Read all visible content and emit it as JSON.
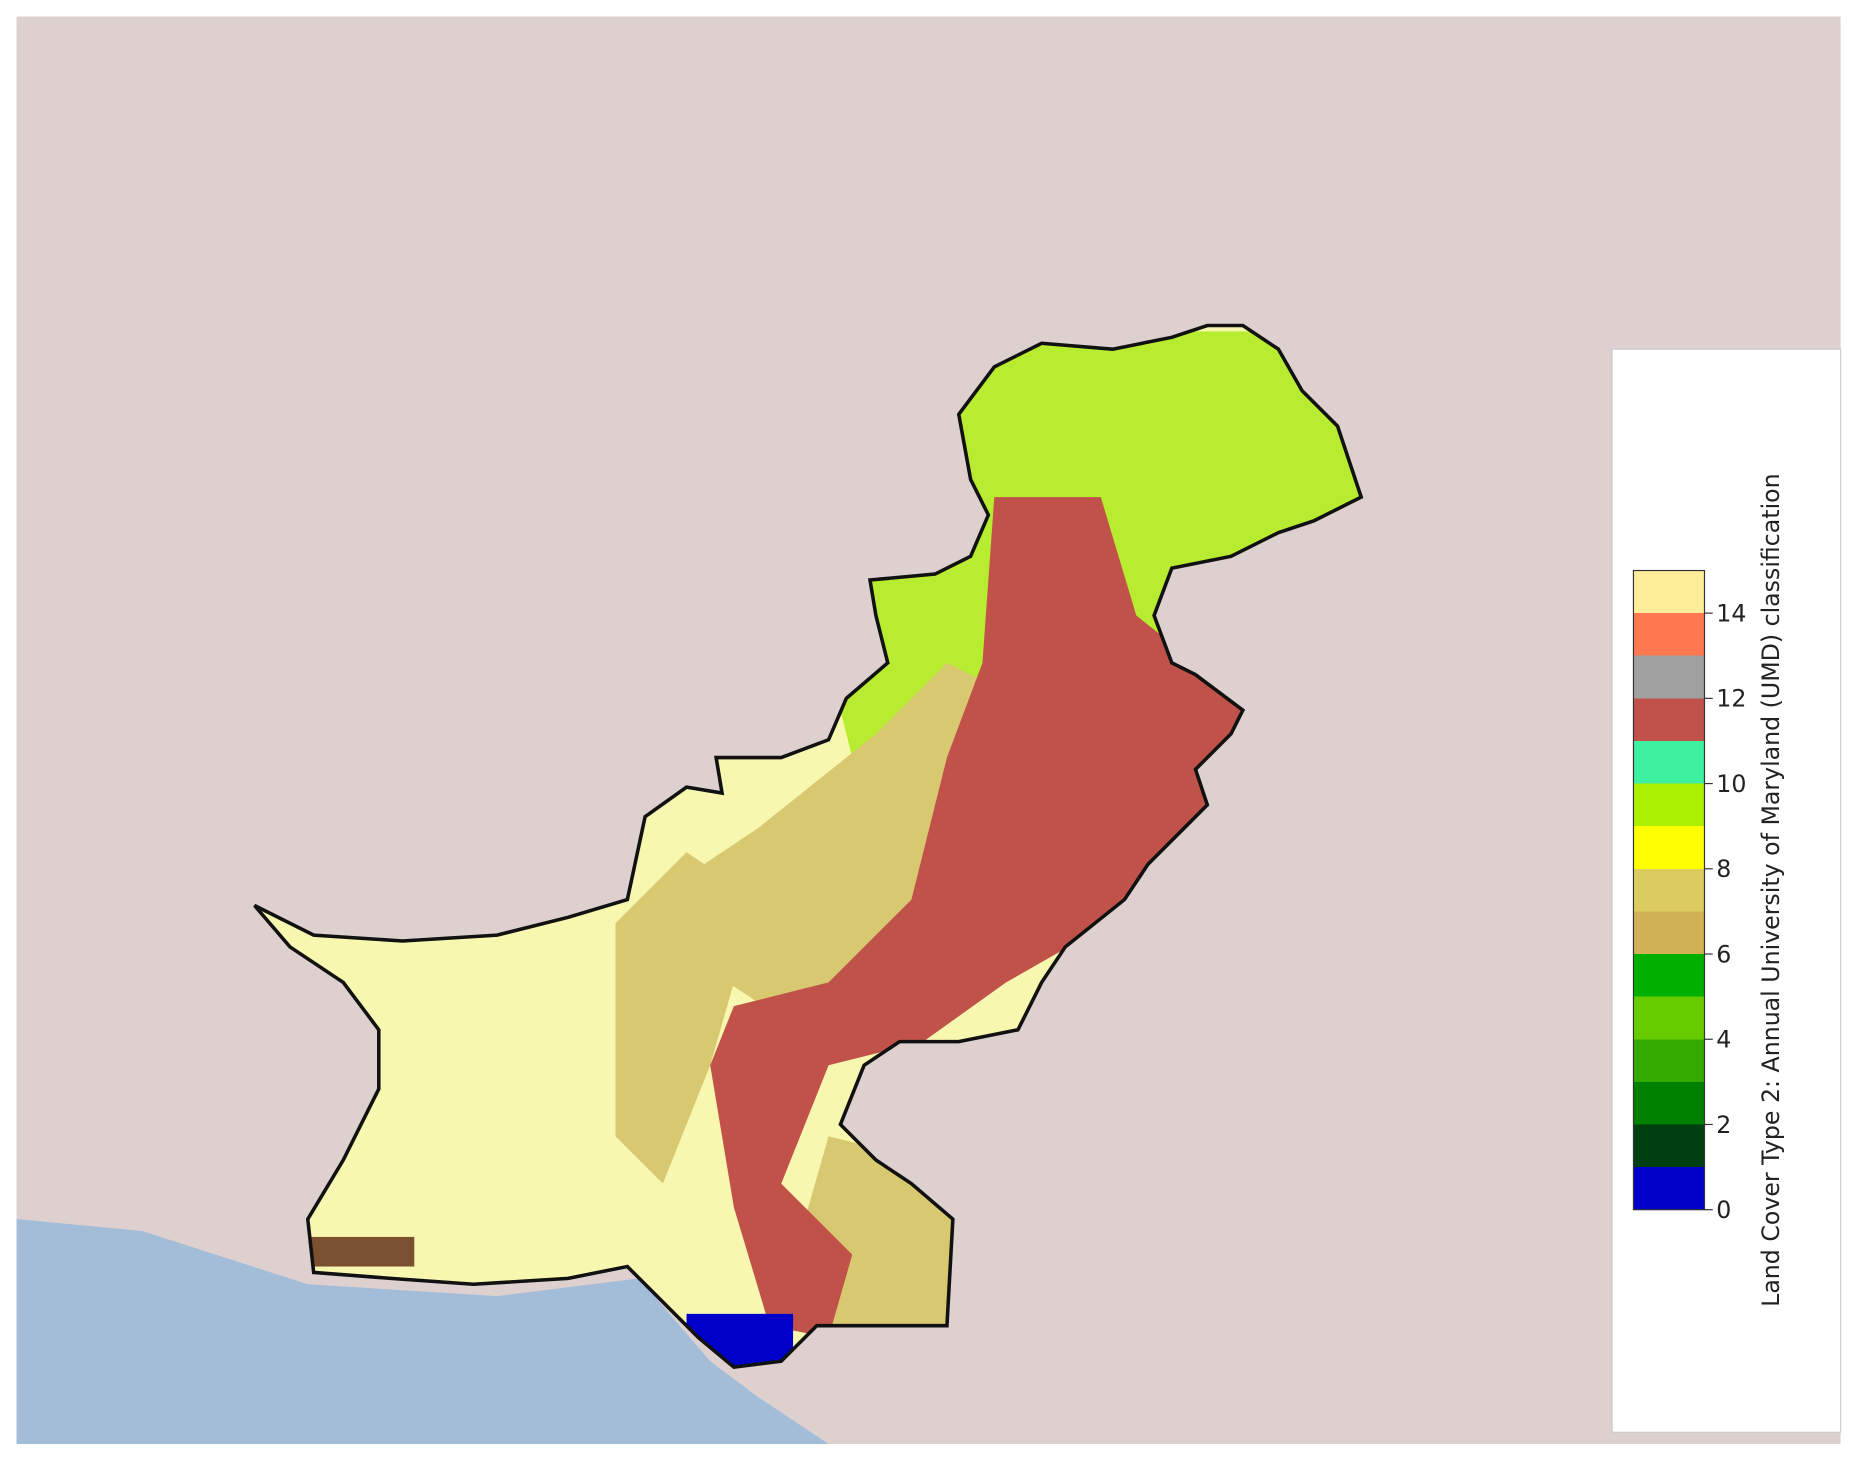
{
  "colorbar": {
    "label": "Land Cover Type 2: Annual University of Maryland (UMD) classification",
    "lim": [
      0,
      15
    ],
    "ticks": [
      0,
      2,
      4,
      6,
      8,
      10,
      12,
      14
    ],
    "colors": [
      "#0000c8",
      "#004010",
      "#008000",
      "#33aa00",
      "#66cc00",
      "#00b000",
      "#d2b055",
      "#dccc60",
      "#ffff00",
      "#aaf000",
      "#3cf0a0",
      "#c0524a",
      "#a0a0a0",
      "#ff7850",
      "#ffee99"
    ]
  }
}
